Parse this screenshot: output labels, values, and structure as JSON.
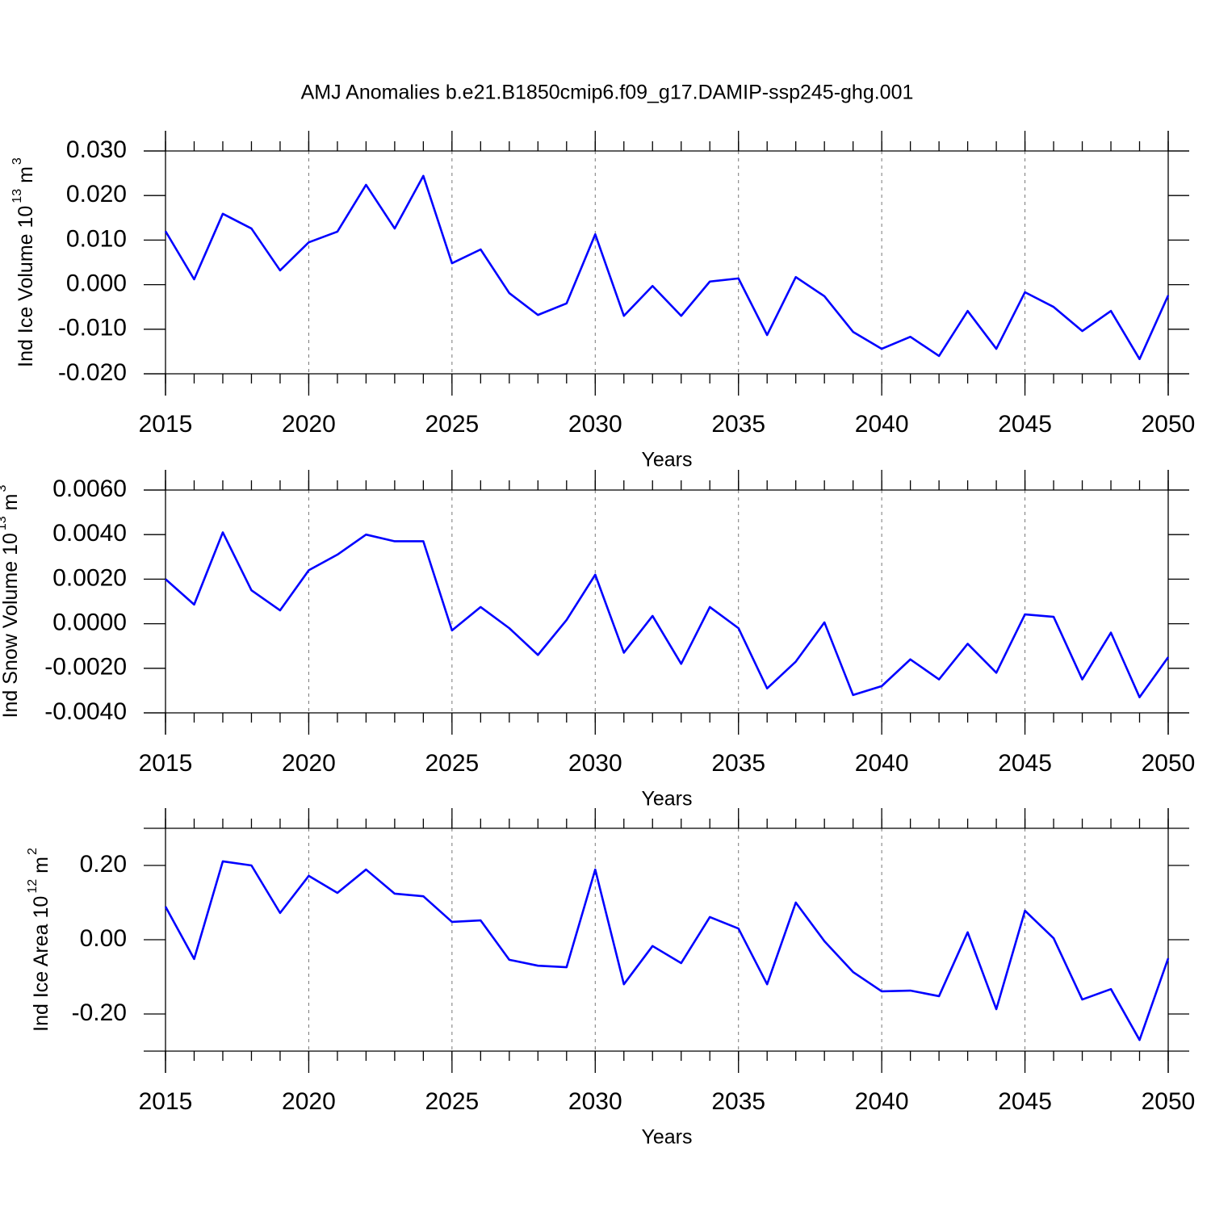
{
  "chart_data": [
    {
      "type": "line",
      "title": "AMJ Anomalies b.e21.B1850cmip6.f09_g17.DAMIP-ssp245-ghg.001",
      "ylabel": "Ind Ice Volume 10",
      "ylabel_exponent": "13",
      "ylabel_unit": "m",
      "ylabel_unit_exponent": "3",
      "xlabel": "Years",
      "x": [
        2015,
        2016,
        2017,
        2018,
        2019,
        2020,
        2021,
        2022,
        2023,
        2024,
        2025,
        2026,
        2027,
        2028,
        2029,
        2030,
        2031,
        2032,
        2033,
        2034,
        2035,
        2036,
        2037,
        2038,
        2039,
        2040,
        2041,
        2042,
        2043,
        2044,
        2045,
        2046,
        2047,
        2048,
        2049,
        2050
      ],
      "series": [
        {
          "color": "#0000ff",
          "values": [
            0.012,
            0.0012,
            0.0159,
            0.0126,
            0.0032,
            0.0095,
            0.0119,
            0.0224,
            0.0126,
            0.0244,
            0.0048,
            0.0079,
            -0.0019,
            -0.0068,
            -0.0042,
            0.0113,
            -0.007,
            -0.0003,
            -0.007,
            0.0007,
            0.0014,
            -0.0113,
            0.0017,
            -0.0026,
            -0.0106,
            -0.0144,
            -0.0117,
            -0.016,
            -0.0059,
            -0.0144,
            -0.0017,
            -0.005,
            -0.0104,
            -0.0059,
            -0.0167,
            -0.0024
          ]
        }
      ],
      "xlim": [
        2015,
        2050
      ],
      "xticks": [
        2015,
        2020,
        2025,
        2030,
        2035,
        2040,
        2045,
        2050
      ],
      "ylim": [
        -0.02,
        0.03
      ],
      "yticks": [
        {
          "value": -0.02,
          "label": "-0.020"
        },
        {
          "value": -0.01,
          "label": "-0.010"
        },
        {
          "value": 0,
          "label": "0.000"
        },
        {
          "value": 0.01,
          "label": "0.010"
        },
        {
          "value": 0.02,
          "label": "0.020"
        },
        {
          "value": 0.03,
          "label": "0.030"
        }
      ],
      "xgrid": true
    },
    {
      "type": "line",
      "ylabel": "Ind Snow Volume 10",
      "ylabel_exponent": "13",
      "ylabel_unit": "m",
      "ylabel_unit_exponent": "3",
      "xlabel": "Years",
      "x": [
        2015,
        2016,
        2017,
        2018,
        2019,
        2020,
        2021,
        2022,
        2023,
        2024,
        2025,
        2026,
        2027,
        2028,
        2029,
        2030,
        2031,
        2032,
        2033,
        2034,
        2035,
        2036,
        2037,
        2038,
        2039,
        2040,
        2041,
        2042,
        2043,
        2044,
        2045,
        2046,
        2047,
        2048,
        2049,
        2050
      ],
      "series": [
        {
          "color": "#0000ff",
          "values": [
            0.002,
            0.00086,
            0.0041,
            0.0015,
            0.0006,
            0.0024,
            0.0031,
            0.004,
            0.0037,
            0.0037,
            -0.0003,
            0.00075,
            -0.0002,
            -0.0014,
            0.00017,
            0.0022,
            -0.0013,
            0.00035,
            -0.0018,
            0.00075,
            -0.0002,
            -0.0029,
            -0.0017,
            6e-05,
            -0.0032,
            -0.0028,
            -0.0016,
            -0.0025,
            -0.0009,
            -0.0022,
            0.00042,
            0.00031,
            -0.0025,
            -0.0004,
            -0.0033,
            -0.0015
          ]
        }
      ],
      "xlim": [
        2015,
        2050
      ],
      "xticks": [
        2015,
        2020,
        2025,
        2030,
        2035,
        2040,
        2045,
        2050
      ],
      "ylim": [
        -0.004,
        0.006
      ],
      "yticks": [
        {
          "value": -0.004,
          "label": "-0.0040"
        },
        {
          "value": -0.002,
          "label": "-0.0020"
        },
        {
          "value": 0,
          "label": "0.0000"
        },
        {
          "value": 0.002,
          "label": "0.0020"
        },
        {
          "value": 0.004,
          "label": "0.0040"
        },
        {
          "value": 0.006,
          "label": "0.0060"
        }
      ],
      "xgrid": true
    },
    {
      "type": "line",
      "ylabel": "Ind Ice Area 10",
      "ylabel_exponent": "12",
      "ylabel_unit": "m",
      "ylabel_unit_exponent": "2",
      "xlabel": "Years",
      "x": [
        2015,
        2016,
        2017,
        2018,
        2019,
        2020,
        2021,
        2022,
        2023,
        2024,
        2025,
        2026,
        2027,
        2028,
        2029,
        2030,
        2031,
        2032,
        2033,
        2034,
        2035,
        2036,
        2037,
        2038,
        2039,
        2040,
        2041,
        2042,
        2043,
        2044,
        2045,
        2046,
        2047,
        2048,
        2049,
        2050
      ],
      "series": [
        {
          "color": "#0000ff",
          "values": [
            0.089,
            -0.052,
            0.211,
            0.2,
            0.072,
            0.172,
            0.126,
            0.189,
            0.124,
            0.117,
            0.048,
            0.052,
            -0.054,
            -0.07,
            -0.074,
            0.189,
            -0.12,
            -0.017,
            -0.063,
            0.061,
            0.03,
            -0.12,
            0.1,
            -0.004,
            -0.087,
            -0.139,
            -0.137,
            -0.152,
            0.02,
            -0.187,
            0.078,
            0.004,
            -0.161,
            -0.133,
            -0.27,
            -0.05
          ]
        }
      ],
      "xlim": [
        2015,
        2050
      ],
      "xticks": [
        2015,
        2020,
        2025,
        2030,
        2035,
        2040,
        2045,
        2050
      ],
      "ylim": [
        -0.3,
        0.3
      ],
      "yticks": [
        {
          "value": -0.2,
          "label": "-0.20"
        },
        {
          "value": 0,
          "label": "0.00"
        },
        {
          "value": 0.2,
          "label": "0.20"
        }
      ],
      "xgrid": true
    }
  ]
}
